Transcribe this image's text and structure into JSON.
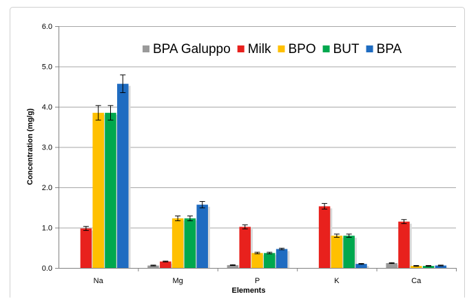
{
  "chart_data": {
    "type": "bar",
    "title": "",
    "xlabel": "Elements",
    "ylabel": "Concentration (mg/g)",
    "ylim": [
      0,
      6
    ],
    "yticks": [
      "0.0",
      "1.0",
      "2.0",
      "3.0",
      "4.0",
      "5.0",
      "6.0"
    ],
    "grid": true,
    "legend_position": "top-right",
    "categories": [
      "Na",
      "Mg",
      "P",
      "K",
      "Ca"
    ],
    "series": [
      {
        "name": "BPA Galuppo",
        "color": "#9a9a9a",
        "values": [
          0.0,
          0.06,
          0.07,
          0.0,
          0.12
        ],
        "errors": [
          0,
          0.01,
          0.01,
          0,
          0.01
        ]
      },
      {
        "name": "Milk",
        "color": "#e8211d",
        "values": [
          0.98,
          0.16,
          1.02,
          1.53,
          1.15
        ],
        "errors": [
          0.05,
          0.01,
          0.05,
          0.07,
          0.05
        ]
      },
      {
        "name": "BPO",
        "color": "#ffc000",
        "values": [
          3.85,
          1.23,
          0.37,
          0.8,
          0.05
        ],
        "errors": [
          0.18,
          0.06,
          0.02,
          0.04,
          0.01
        ]
      },
      {
        "name": "BUT",
        "color": "#00a84e",
        "values": [
          3.85,
          1.23,
          0.37,
          0.8,
          0.05
        ],
        "errors": [
          0.18,
          0.06,
          0.02,
          0.04,
          0.01
        ]
      },
      {
        "name": "BPA",
        "color": "#1f6cc1",
        "values": [
          4.57,
          1.57,
          0.47,
          0.1,
          0.06
        ],
        "errors": [
          0.22,
          0.08,
          0.02,
          0.01,
          0.01
        ]
      }
    ]
  }
}
